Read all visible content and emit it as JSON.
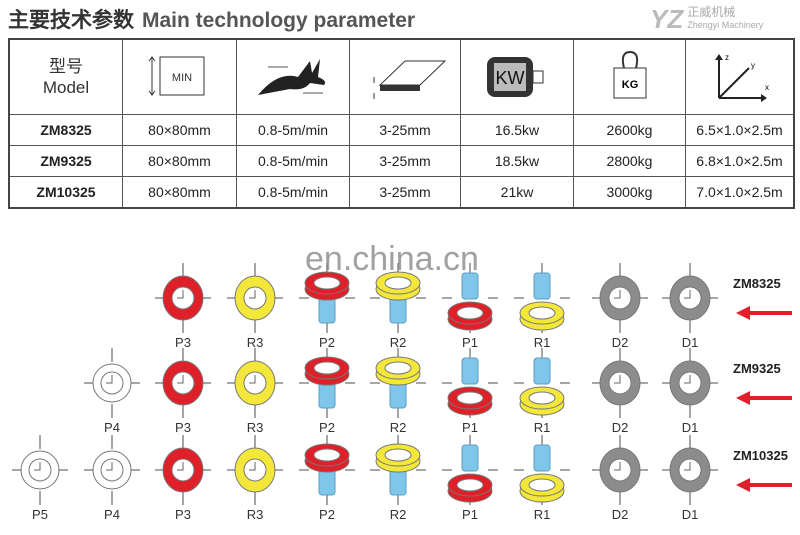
{
  "title": {
    "cn": "主要技术参数",
    "en": "Main technology parameter"
  },
  "logo": {
    "text": "正威机械",
    "sub": "Zhengyi Machinery"
  },
  "table": {
    "header": {
      "model_cn": "型号",
      "model_en": "Model",
      "icons": [
        "min-size-icon",
        "speed-rabbit-icon",
        "thickness-icon",
        "motor-kw-icon",
        "weight-kg-icon",
        "dimensions-xyz-icon"
      ],
      "icon_text": {
        "min": "MIN",
        "kw": "KW",
        "kg": "KG"
      }
    },
    "rows": [
      [
        "ZM8325",
        "80×80mm",
        "0.8-5m/min",
        "3-25mm",
        "16.5kw",
        "2600kg",
        "6.5×1.0×2.5m"
      ],
      [
        "ZM9325",
        "80×80mm",
        "0.8-5m/min",
        "3-25mm",
        "18.5kw",
        "2800kg",
        "6.8×1.0×2.5m"
      ],
      [
        "ZM10325",
        "80×80mm",
        "0.8-5m/min",
        "3-25mm",
        "21kw",
        "3000kg",
        "7.0×1.0×2.5m"
      ]
    ]
  },
  "watermark": "en.china.cn",
  "rolls": [
    {
      "model": "ZM8325",
      "stations": [
        "P3",
        "R3",
        "P2",
        "R2",
        "P1",
        "R1",
        "D2",
        "D1"
      ]
    },
    {
      "model": "ZM9325",
      "stations": [
        "P4",
        "P3",
        "R3",
        "P2",
        "R2",
        "P1",
        "R1",
        "D2",
        "D1"
      ]
    },
    {
      "model": "ZM10325",
      "stations": [
        "P5",
        "P4",
        "P3",
        "R3",
        "P2",
        "R2",
        "P1",
        "R1",
        "D2",
        "D1"
      ]
    }
  ],
  "colors": {
    "red": "#e02028",
    "yellow": "#f3e83a",
    "gray": "#8c8c8c",
    "blue": "#7fc6ea",
    "arrow": "#e0202a"
  }
}
